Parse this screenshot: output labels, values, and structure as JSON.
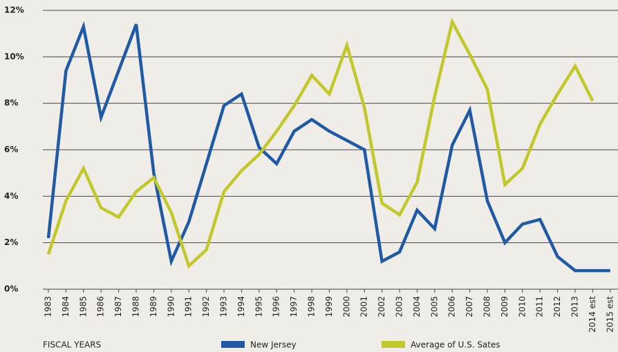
{
  "chart_data": {
    "type": "line",
    "x_label": "FISCAL YEARS",
    "categories": [
      "1983",
      "1984",
      "1985",
      "1986",
      "1987",
      "1988",
      "1989",
      "1990",
      "1991",
      "1992",
      "1993",
      "1994",
      "1995",
      "1996",
      "1997",
      "1998",
      "1999",
      "2000",
      "2001",
      "2002",
      "2003",
      "2004",
      "2005",
      "2006",
      "2007",
      "2008",
      "2009",
      "2010",
      "2011",
      "2012",
      "2013",
      "2014 est",
      "2015 est"
    ],
    "series": [
      {
        "name": "New Jersey",
        "color": "#1f5aa6",
        "values": [
          2.2,
          9.4,
          11.3,
          7.4,
          9.4,
          11.4,
          5.0,
          1.2,
          2.9,
          5.4,
          7.9,
          8.4,
          6.1,
          5.4,
          6.8,
          7.3,
          6.8,
          6.4,
          6.0,
          1.2,
          1.6,
          3.4,
          2.6,
          6.2,
          7.7,
          3.8,
          2.0,
          2.8,
          3.0,
          1.4,
          0.8,
          0.8,
          0.8
        ]
      },
      {
        "name": "Average of U.S. Sates",
        "color": "#c3c82a",
        "values": [
          1.5,
          3.8,
          5.2,
          3.5,
          3.1,
          4.2,
          4.8,
          3.3,
          1.0,
          1.7,
          4.2,
          5.1,
          5.8,
          6.8,
          7.9,
          9.2,
          8.4,
          10.5,
          7.8,
          3.7,
          3.2,
          4.6,
          8.3,
          11.5,
          10.1,
          8.6,
          4.5,
          5.2,
          7.1,
          8.4,
          9.6,
          8.1,
          null
        ]
      }
    ],
    "ylim": [
      0,
      12
    ],
    "yticks": [
      {
        "value": 0,
        "label": "0%"
      },
      {
        "value": 2,
        "label": "2%"
      },
      {
        "value": 4,
        "label": "4%"
      },
      {
        "value": 6,
        "label": "6%"
      },
      {
        "value": 8,
        "label": "8%"
      },
      {
        "value": 10,
        "label": "10%"
      },
      {
        "value": 12,
        "label": "12%"
      }
    ],
    "grid": true
  }
}
